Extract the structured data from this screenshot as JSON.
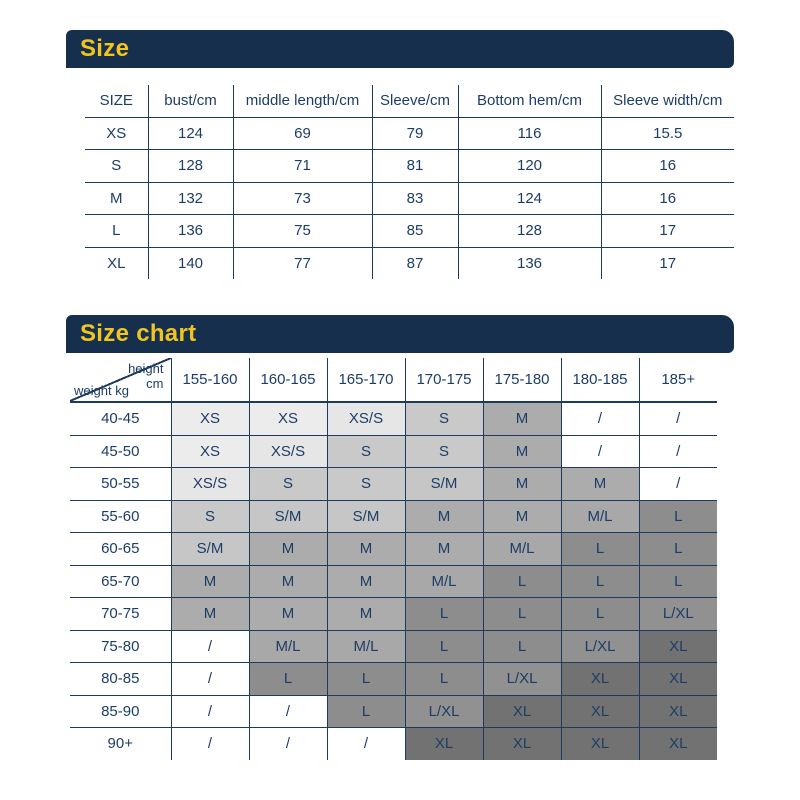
{
  "colors": {
    "bar_background": "#152f4d",
    "title_yellow": "#f2c41d",
    "table_ink": "#1e3d66",
    "size_fills": {
      "XS": "#ececec",
      "XS/S": "#e6e6e6",
      "S": "#c9c9c9",
      "S/M": "#c6c6c6",
      "M": "#acacac",
      "M/L": "#a8a8a8",
      "L": "#8d8d8d",
      "L/XL": "#919191",
      "XL": "#727272",
      "/": "#ffffff"
    }
  },
  "size_section": {
    "title": "Size",
    "table": {
      "headers": [
        "SIZE",
        "bust/cm",
        "middle length/cm",
        "Sleeve/cm",
        "Bottom hem/cm",
        "Sleeve width/cm"
      ],
      "rows": [
        [
          "XS",
          "124",
          "69",
          "79",
          "116",
          "15.5"
        ],
        [
          "S",
          "128",
          "71",
          "81",
          "120",
          "16"
        ],
        [
          "M",
          "132",
          "73",
          "83",
          "124",
          "16"
        ],
        [
          "L",
          "136",
          "75",
          "85",
          "128",
          "17"
        ],
        [
          "XL",
          "140",
          "77",
          "87",
          "136",
          "17"
        ]
      ]
    }
  },
  "size_chart_section": {
    "title": "Size chart",
    "corner": {
      "top_label": "height",
      "top_unit": "cm",
      "bottom_label": "weight kg"
    },
    "height_columns": [
      "155-160",
      "160-165",
      "165-170",
      "170-175",
      "175-180",
      "180-185",
      "185+"
    ],
    "rows": [
      {
        "weight": "40-45",
        "cells": [
          "XS",
          "XS",
          "XS/S",
          "S",
          "M",
          "/",
          "/"
        ]
      },
      {
        "weight": "45-50",
        "cells": [
          "XS",
          "XS/S",
          "S",
          "S",
          "M",
          "/",
          "/"
        ]
      },
      {
        "weight": "50-55",
        "cells": [
          "XS/S",
          "S",
          "S",
          "S/M",
          "M",
          "M",
          "/"
        ]
      },
      {
        "weight": "55-60",
        "cells": [
          "S",
          "S/M",
          "S/M",
          "M",
          "M",
          "M/L",
          "L"
        ]
      },
      {
        "weight": "60-65",
        "cells": [
          "S/M",
          "M",
          "M",
          "M",
          "M/L",
          "L",
          "L"
        ]
      },
      {
        "weight": "65-70",
        "cells": [
          "M",
          "M",
          "M",
          "M/L",
          "L",
          "L",
          "L"
        ]
      },
      {
        "weight": "70-75",
        "cells": [
          "M",
          "M",
          "M",
          "L",
          "L",
          "L",
          "L/XL"
        ]
      },
      {
        "weight": "75-80",
        "cells": [
          "/",
          "M/L",
          "M/L",
          "L",
          "L",
          "L/XL",
          "XL"
        ]
      },
      {
        "weight": "80-85",
        "cells": [
          "/",
          "L",
          "L",
          "L",
          "L/XL",
          "XL",
          "XL"
        ]
      },
      {
        "weight": "85-90",
        "cells": [
          "/",
          "/",
          "L",
          "L/XL",
          "XL",
          "XL",
          "XL"
        ]
      },
      {
        "weight": "90+",
        "cells": [
          "/",
          "/",
          "/",
          "XL",
          "XL",
          "XL",
          "XL"
        ]
      }
    ]
  }
}
